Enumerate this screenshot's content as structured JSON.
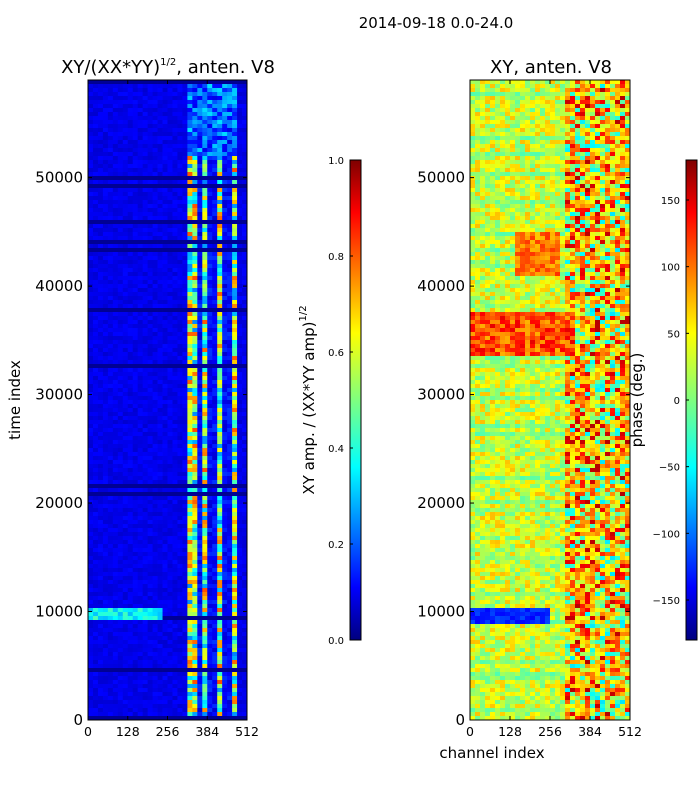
{
  "figure": {
    "suptitle": "2014-09-18 0.0-24.0",
    "colors": {
      "jet": [
        "#00007f",
        "#0000ff",
        "#007fff",
        "#00ffff",
        "#7fff7f",
        "#ffff00",
        "#ff7f00",
        "#ff0000",
        "#7f0000"
      ]
    }
  },
  "chart_data": [
    {
      "type": "heatmap",
      "title": "XY/(XX*YY)",
      "title_exponent": "1/2",
      "title_suffix": ", anten. V8",
      "xlabel": "",
      "ylabel": "time index",
      "xlim": [
        0,
        512
      ],
      "ylim": [
        0,
        59000
      ],
      "x_ticks": [
        "0",
        "128",
        "256",
        "384",
        "512"
      ],
      "x_tick_values": [
        0,
        128,
        256,
        384,
        512
      ],
      "y_ticks": [
        "0",
        "10000",
        "20000",
        "30000",
        "40000",
        "50000"
      ],
      "y_tick_values": [
        0,
        10000,
        20000,
        30000,
        40000,
        50000
      ],
      "colorbar": {
        "label": "XY amp. / (XX*YY amp)",
        "label_exponent": "1/2",
        "range": [
          0.0,
          1.0
        ],
        "ticks": [
          "0.0",
          "0.2",
          "0.4",
          "0.6",
          "0.8",
          "1.0"
        ],
        "tick_values": [
          0.0,
          0.2,
          0.4,
          0.6,
          0.8,
          1.0
        ]
      }
    },
    {
      "type": "heatmap",
      "title": "XY, anten. V8",
      "xlabel": "channel index",
      "ylabel": "",
      "xlim": [
        0,
        512
      ],
      "ylim": [
        0,
        59000
      ],
      "x_ticks": [
        "0",
        "128",
        "256",
        "384",
        "512"
      ],
      "x_tick_values": [
        0,
        128,
        256,
        384,
        512
      ],
      "y_ticks": [
        "0",
        "10000",
        "20000",
        "30000",
        "40000",
        "50000"
      ],
      "y_tick_values": [
        0,
        10000,
        20000,
        30000,
        40000,
        50000
      ],
      "colorbar": {
        "label": "phase (deg.)",
        "range": [
          -180,
          180
        ],
        "ticks": [
          "−150",
          "−100",
          "−50",
          "0",
          "50",
          "100",
          "150"
        ],
        "tick_values": [
          -150,
          -100,
          -50,
          0,
          50,
          100,
          150
        ]
      }
    }
  ]
}
